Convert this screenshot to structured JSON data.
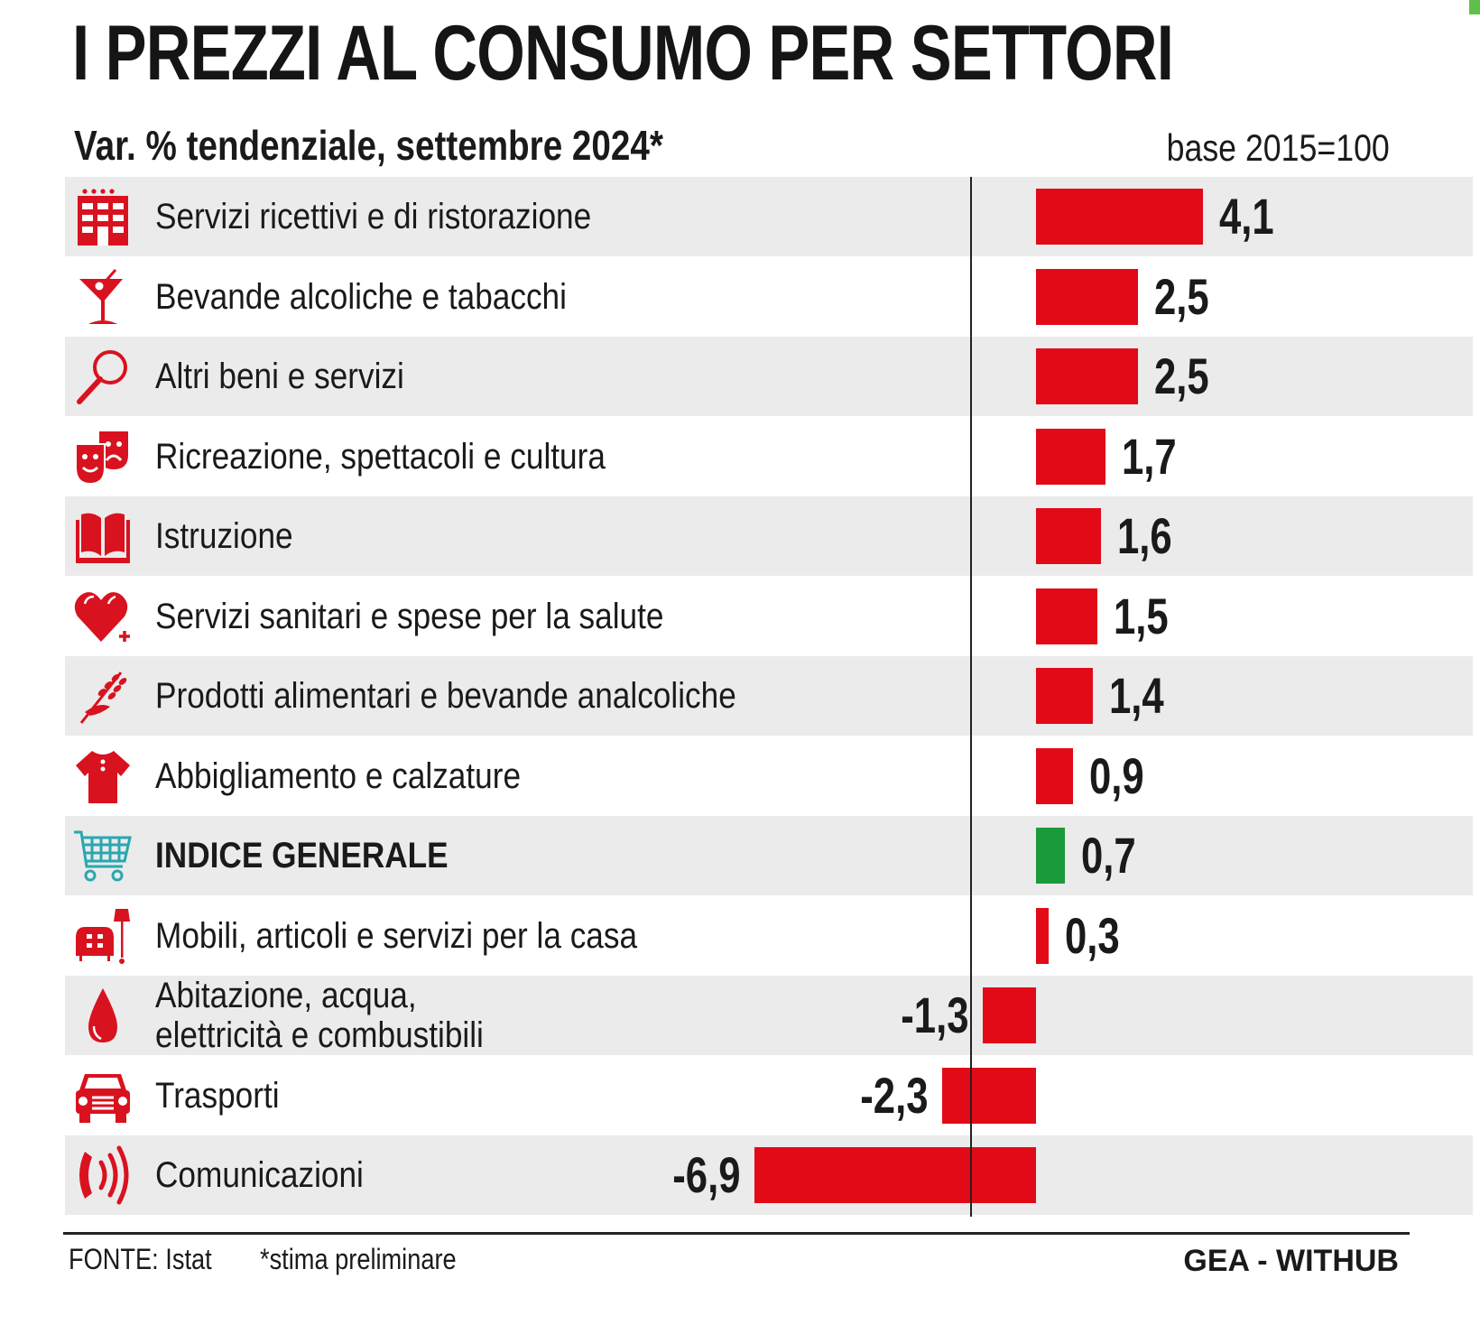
{
  "header": {
    "title": "I PREZZI AL CONSUMO PER SETTORI",
    "subtitle": "Var. % tendenziale, settembre 2024*",
    "base_note": "base 2015=100"
  },
  "footer": {
    "source": "FONTE: Istat",
    "note": "*stima preliminare",
    "credit": "GEA - WITHUB"
  },
  "colors": {
    "bar_positive": "#e20a17",
    "bar_index": "#1a9a3a",
    "icon_red": "#d9121f",
    "icon_teal": "#2aa7b0",
    "row_grey": "#ebebeb"
  },
  "chart_data": {
    "type": "bar",
    "orientation": "horizontal",
    "title": "I PREZZI AL CONSUMO PER SETTORI",
    "subtitle": "Var. % tendenziale, settembre 2024*",
    "xlabel": "",
    "ylabel": "",
    "xlim": [
      -6.9,
      4.1
    ],
    "grid": false,
    "legend": "none",
    "categories": [
      "Servizi ricettivi e di ristorazione",
      "Bevande alcoliche e tabacchi",
      "Altri beni e servizi",
      "Ricreazione, spettacoli e cultura",
      "Istruzione",
      "Servizi sanitari e spese per la salute",
      "Prodotti alimentari e bevande analcoliche",
      "Abbigliamento e calzature",
      "INDICE GENERALE",
      "Mobili, articoli e servizi per la casa",
      "Abitazione, acqua, elettricità e combustibili",
      "Trasporti",
      "Comunicazioni"
    ],
    "values": [
      4.1,
      2.5,
      2.5,
      1.7,
      1.6,
      1.5,
      1.4,
      0.9,
      0.7,
      0.3,
      -1.3,
      -2.3,
      -6.9
    ],
    "value_labels": [
      "4,1",
      "2,5",
      "2,5",
      "1,7",
      "1,6",
      "1,5",
      "1,4",
      "0,9",
      "0,7",
      "0,3",
      "-1,3",
      "-2,3",
      "-6,9"
    ],
    "highlight": "INDICE GENERALE",
    "rows": [
      {
        "label": "Servizi ricettivi e di ristorazione",
        "icon": "hotel-icon",
        "value": 4.1,
        "value_label": "4,1"
      },
      {
        "label": "Bevande alcoliche e tabacchi",
        "icon": "cocktail-icon",
        "value": 2.5,
        "value_label": "2,5"
      },
      {
        "label": "Altri beni e servizi",
        "icon": "magnifier-icon",
        "value": 2.5,
        "value_label": "2,5"
      },
      {
        "label": "Ricreazione, spettacoli e cultura",
        "icon": "theater-masks-icon",
        "value": 1.7,
        "value_label": "1,7"
      },
      {
        "label": "Istruzione",
        "icon": "open-book-icon",
        "value": 1.6,
        "value_label": "1,6"
      },
      {
        "label": "Servizi sanitari e spese per la salute",
        "icon": "heart-plus-icon",
        "value": 1.5,
        "value_label": "1,5"
      },
      {
        "label": "Prodotti alimentari e bevande analcoliche",
        "icon": "wheat-hand-icon",
        "value": 1.4,
        "value_label": "1,4"
      },
      {
        "label": "Abbigliamento e calzature",
        "icon": "shirt-icon",
        "value": 0.9,
        "value_label": "0,9"
      },
      {
        "label": "INDICE GENERALE",
        "icon": "shopping-cart-icon",
        "value": 0.7,
        "value_label": "0,7",
        "bold": true
      },
      {
        "label": "Mobili, articoli e servizi per la casa",
        "icon": "armchair-lamp-icon",
        "value": 0.3,
        "value_label": "0,3"
      },
      {
        "label": "Abitazione, acqua,",
        "label_line2": "elettricità e combustibili",
        "icon": "drop-icon",
        "value": -1.3,
        "value_label": "-1,3"
      },
      {
        "label": "Trasporti",
        "icon": "car-icon",
        "value": -2.3,
        "value_label": "-2,3"
      },
      {
        "label": "Comunicazioni",
        "icon": "phone-signal-icon",
        "value": -6.9,
        "value_label": "-6,9"
      }
    ]
  }
}
